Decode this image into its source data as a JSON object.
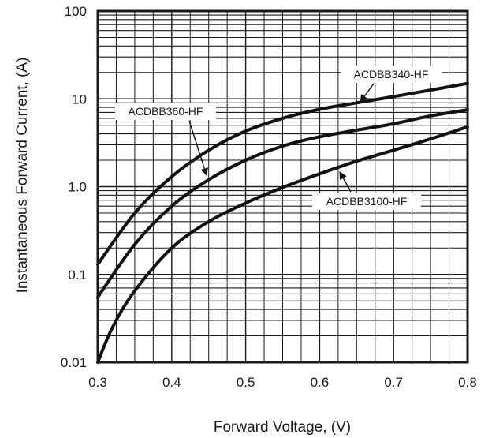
{
  "chart_data": {
    "type": "line",
    "xlabel": "Forward Voltage, (V)",
    "ylabel": "Instantaneous Forward Current, (A)",
    "x_scale": "linear",
    "y_scale": "log",
    "xlim": [
      0.3,
      0.8
    ],
    "ylim": [
      0.01,
      100
    ],
    "grid": true,
    "xticks": [
      "0.3",
      "0.4",
      "0.5",
      "0.6",
      "0.7",
      "0.8"
    ],
    "yticks": [
      "0.01",
      "0.1",
      "1.0",
      "10",
      "100"
    ],
    "series": [
      {
        "name": "ACDBB340-HF",
        "x": [
          0.3,
          0.35,
          0.4,
          0.45,
          0.5,
          0.55,
          0.6,
          0.65,
          0.7,
          0.75,
          0.8
        ],
        "y": [
          0.13,
          0.5,
          1.3,
          2.6,
          4.3,
          6.0,
          7.6,
          9.0,
          10.6,
          12.6,
          15.0
        ]
      },
      {
        "name": "ACDBB360-HF",
        "x": [
          0.3,
          0.35,
          0.4,
          0.45,
          0.5,
          0.55,
          0.6,
          0.65,
          0.7,
          0.75,
          0.8
        ],
        "y": [
          0.055,
          0.22,
          0.6,
          1.2,
          2.0,
          2.9,
          3.7,
          4.4,
          5.2,
          6.4,
          7.5
        ]
      },
      {
        "name": "ACDBB3100-HF",
        "x": [
          0.3,
          0.32,
          0.35,
          0.4,
          0.45,
          0.5,
          0.55,
          0.6,
          0.65,
          0.7,
          0.75,
          0.8
        ],
        "y": [
          0.01,
          0.025,
          0.065,
          0.2,
          0.4,
          0.65,
          0.98,
          1.4,
          1.95,
          2.6,
          3.5,
          4.8
        ]
      }
    ]
  }
}
